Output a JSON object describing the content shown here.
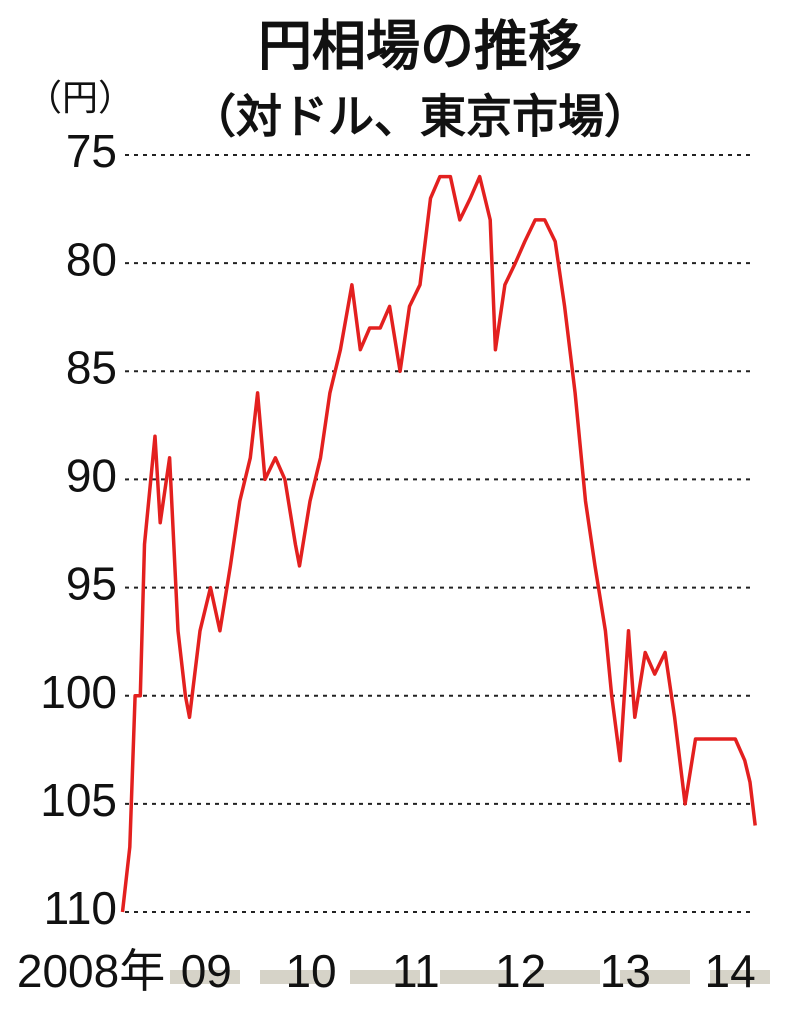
{
  "chart_data": {
    "type": "line",
    "title": "円相場の推移",
    "subtitle": "（対ドル、東京市場）",
    "y_label": "（円）",
    "color": "#e3201f",
    "x": [
      2008.7,
      2008.77,
      2008.82,
      2008.87,
      2008.91,
      2009.01,
      2009.06,
      2009.15,
      2009.23,
      2009.3,
      2009.34,
      2009.44,
      2009.54,
      2009.63,
      2009.73,
      2009.82,
      2009.92,
      2009.99,
      2010.06,
      2010.16,
      2010.25,
      2010.35,
      2010.39,
      2010.49,
      2010.59,
      2010.68,
      2010.78,
      2010.89,
      2010.97,
      2011.06,
      2011.16,
      2011.25,
      2011.35,
      2011.44,
      2011.54,
      2011.64,
      2011.73,
      2011.83,
      2011.92,
      2012.02,
      2012.11,
      2012.21,
      2012.26,
      2012.35,
      2012.45,
      2012.54,
      2012.64,
      2012.73,
      2012.83,
      2012.92,
      2013.02,
      2013.12,
      2013.21,
      2013.31,
      2013.37,
      2013.45,
      2013.53,
      2013.59,
      2013.69,
      2013.78,
      2013.88,
      2013.97,
      2014.07,
      2014.17,
      2014.26,
      2014.36,
      2014.46,
      2014.55,
      2014.64,
      2014.69,
      2014.74
    ],
    "values": [
      110,
      107,
      100,
      100,
      93,
      88,
      92,
      89,
      97,
      100,
      101,
      97,
      95,
      97,
      94,
      91,
      89,
      86,
      90,
      89,
      90,
      93,
      94,
      91,
      89,
      86,
      84,
      81,
      84,
      83,
      83,
      82,
      85,
      82,
      81,
      77,
      76,
      76,
      78,
      77,
      76,
      78,
      84,
      81,
      80,
      79,
      78,
      78,
      79,
      82,
      86,
      91,
      94,
      97,
      100,
      103,
      97,
      101,
      98,
      99,
      98,
      101,
      105,
      102,
      102,
      102,
      102,
      102,
      103,
      104,
      106
    ],
    "xlim": [
      2008.3,
      2014.9
    ],
    "xticks": [
      {
        "value": 2008.4,
        "label": "2008年"
      },
      {
        "value": 2009.5,
        "label": "09"
      },
      {
        "value": 2010.5,
        "label": "10"
      },
      {
        "value": 2011.5,
        "label": "11"
      },
      {
        "value": 2012.5,
        "label": "12"
      },
      {
        "value": 2013.5,
        "label": "13"
      },
      {
        "value": 2014.5,
        "label": "14"
      }
    ],
    "ylim": [
      110,
      75
    ],
    "yticks": [
      75,
      80,
      85,
      90,
      95,
      100,
      105,
      110
    ],
    "grid": true
  }
}
